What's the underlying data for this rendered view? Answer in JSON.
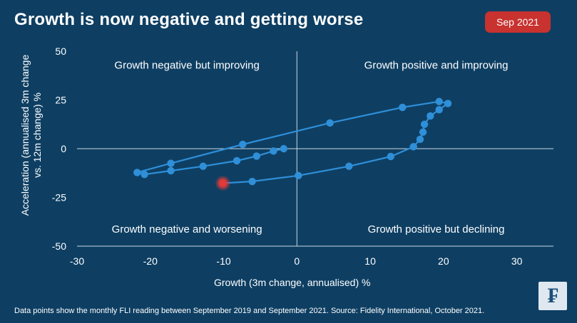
{
  "header": {
    "title": "Growth is now negative and getting worse",
    "date_badge": "Sep 2021"
  },
  "footer": {
    "note": "Data points show the monthly FLI reading between September 2019 and September 2021. Source: Fidelity International, October 2021.",
    "logo_glyph": "₣"
  },
  "colors": {
    "background": "#0e3f63",
    "series": "#2f8fd8",
    "latest_point": "#e03a3a",
    "badge": "#c8322f"
  },
  "chart_data": {
    "type": "scatter",
    "connected": true,
    "xlabel": "Growth (3m change, annualised) %",
    "ylabel": "Acceleration (annualised 3m change vs. 12m change) %",
    "xlim": [
      -30,
      35
    ],
    "ylim": [
      -50,
      50
    ],
    "xticks": [
      -30,
      -20,
      -10,
      0,
      10,
      20,
      30
    ],
    "yticks": [
      50,
      25,
      0,
      -25,
      -50
    ],
    "grid": false,
    "quadrant_labels": {
      "top_left": "Growth negative but improving",
      "top_right": "Growth positive and improving",
      "bottom_left": "Growth negative and worsening",
      "bottom_right": "Growth positive but declining"
    },
    "series": [
      {
        "points": [
          {
            "x": -1.8,
            "y": 0
          },
          {
            "x": -3.2,
            "y": -1.2
          },
          {
            "x": -5.5,
            "y": -3.8
          },
          {
            "x": -8.2,
            "y": -6.2
          },
          {
            "x": -12.8,
            "y": -9.0
          },
          {
            "x": -17.2,
            "y": -11.3
          },
          {
            "x": -20.8,
            "y": -13.2
          },
          {
            "x": -21.8,
            "y": -12.2
          },
          {
            "x": -17.2,
            "y": -7.5
          },
          {
            "x": -7.4,
            "y": 2.2
          },
          {
            "x": 4.5,
            "y": 13.2
          },
          {
            "x": 14.4,
            "y": 21.2
          },
          {
            "x": 19.4,
            "y": 24.2
          },
          {
            "x": 20.6,
            "y": 23.2
          },
          {
            "x": 19.4,
            "y": 20.0
          },
          {
            "x": 18.2,
            "y": 16.8
          },
          {
            "x": 17.4,
            "y": 12.5
          },
          {
            "x": 17.2,
            "y": 8.5
          },
          {
            "x": 16.8,
            "y": 4.8
          },
          {
            "x": 15.9,
            "y": 1.0
          },
          {
            "x": 12.8,
            "y": -4.0
          },
          {
            "x": 7.1,
            "y": -9.0
          },
          {
            "x": 0.2,
            "y": -13.8
          },
          {
            "x": -6.1,
            "y": -16.8
          },
          {
            "x": -10.1,
            "y": -17.7
          }
        ]
      }
    ],
    "highlight_last_point": true
  }
}
